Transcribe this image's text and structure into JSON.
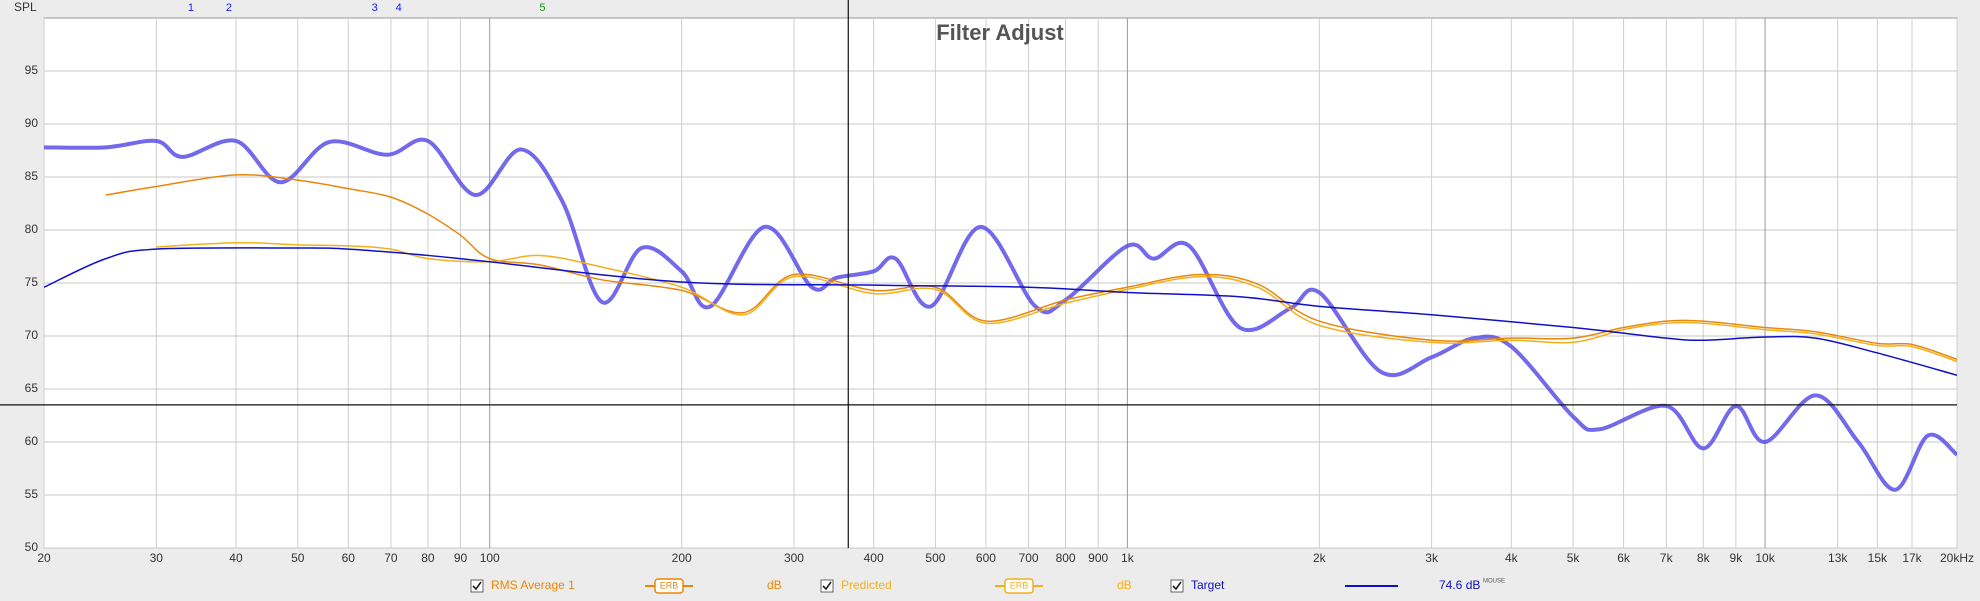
{
  "chart_data": {
    "type": "line",
    "title": "Filter Adjust",
    "ylabel": "SPL",
    "xscale": "log",
    "xlim": [
      20,
      20000
    ],
    "ylim": [
      50,
      100
    ],
    "grid": true,
    "xticks": [
      20,
      30,
      40,
      50,
      60,
      70,
      80,
      90,
      100,
      200,
      300,
      400,
      500,
      600,
      700,
      800,
      900,
      {
        "value": 1000,
        "label": "1k"
      },
      {
        "value": 2000,
        "label": "2k"
      },
      {
        "value": 3000,
        "label": "3k"
      },
      {
        "value": 4000,
        "label": "4k"
      },
      {
        "value": 5000,
        "label": "5k"
      },
      {
        "value": 6000,
        "label": "6k"
      },
      {
        "value": 7000,
        "label": "7k"
      },
      {
        "value": 8000,
        "label": "8k"
      },
      {
        "value": 9000,
        "label": "9k"
      },
      {
        "value": 10000,
        "label": "10k"
      },
      {
        "value": 13000,
        "label": "13k"
      },
      {
        "value": 15000,
        "label": "15k"
      },
      {
        "value": 17000,
        "label": "17k"
      },
      {
        "value": 20000,
        "label": "20kHz"
      }
    ],
    "yticks": [
      50,
      55,
      60,
      65,
      70,
      75,
      80,
      85,
      90,
      95
    ],
    "cursor": {
      "x": 365,
      "y": 63.5
    },
    "filter_markers": [
      {
        "label": "1",
        "x": 34,
        "color": "#1a1aff"
      },
      {
        "label": "2",
        "x": 39,
        "color": "#1a1aff"
      },
      {
        "label": "3",
        "x": 66,
        "color": "#1a1aff"
      },
      {
        "label": "4",
        "x": 72,
        "color": "#1a1aff"
      },
      {
        "label": "5",
        "x": 121,
        "color": "#119911"
      }
    ],
    "series": [
      {
        "color": "#5b4fe6",
        "line_width": 4,
        "x": [
          20,
          25,
          30,
          33,
          40,
          47,
          56,
          69,
          80,
          95,
          112,
          130,
          150,
          173,
          200,
          222,
          270,
          320,
          350,
          400,
          433,
          492,
          589,
          717,
          800,
          1000,
          1100,
          1250,
          1500,
          1800,
          2000,
          2500,
          3000,
          3500,
          4000,
          5000,
          5500,
          7000,
          8000,
          9000,
          10000,
          12000,
          14000,
          16000,
          18000,
          20000
        ],
        "values": [
          87.8,
          87.8,
          88.4,
          86.9,
          88.4,
          84.5,
          88.3,
          87.1,
          88.4,
          83.3,
          87.6,
          82.7,
          73.2,
          78.3,
          76.1,
          72.8,
          80.3,
          74.6,
          75.5,
          76.1,
          77.3,
          72.8,
          80.3,
          72.8,
          73.4,
          78.5,
          77.3,
          78.5,
          70.8,
          72.6,
          74.1,
          66.6,
          68.0,
          69.8,
          69.0,
          62.4,
          61.2,
          63.4,
          59.4,
          63.4,
          60.0,
          64.4,
          60.0,
          55.5,
          60.6,
          58.8
        ]
      },
      {
        "name": "RMS Average 1",
        "color": "#e8870c",
        "line_width": 1.5,
        "smoothing": "ERB",
        "unit": "dB",
        "x": [
          25,
          30,
          40,
          50,
          60,
          70,
          80,
          90,
          100,
          120,
          150,
          200,
          250,
          300,
          400,
          500,
          600,
          800,
          1000,
          1300,
          1600,
          2000,
          3000,
          4000,
          5000,
          6000,
          7000,
          8000,
          10000,
          12000,
          15000,
          17000,
          20000
        ],
        "values": [
          83.3,
          84.1,
          85.2,
          84.7,
          83.9,
          83.1,
          81.5,
          79.5,
          77.3,
          76.7,
          75.3,
          74.3,
          72.2,
          75.8,
          74.3,
          74.6,
          71.4,
          73.4,
          74.6,
          75.8,
          74.9,
          71.4,
          69.6,
          69.8,
          69.8,
          70.8,
          71.4,
          71.4,
          70.8,
          70.4,
          69.3,
          69.2,
          67.8
        ]
      },
      {
        "name": "Predicted",
        "color": "#f2b01e",
        "line_width": 1.5,
        "smoothing": "ERB",
        "unit": "dB",
        "x": [
          30,
          40,
          50,
          60,
          70,
          80,
          100,
          120,
          150,
          200,
          250,
          300,
          400,
          500,
          600,
          800,
          1000,
          1300,
          1600,
          2000,
          3000,
          4000,
          5000,
          6000,
          7000,
          8000,
          10000,
          12000,
          15000,
          17000,
          20000
        ],
        "values": [
          78.4,
          78.8,
          78.6,
          78.5,
          78.2,
          77.3,
          77.0,
          77.6,
          76.5,
          74.6,
          72.0,
          75.6,
          74.0,
          74.4,
          71.2,
          73.1,
          74.4,
          75.6,
          74.6,
          71.0,
          69.4,
          69.6,
          69.4,
          70.6,
          71.2,
          71.2,
          70.6,
          70.2,
          69.1,
          69.0,
          67.6
        ]
      },
      {
        "name": "Target",
        "color": "#1010c8",
        "line_width": 1.5,
        "readout": "74.6 dB",
        "readout_note": "MOUSE",
        "x": [
          20,
          25,
          30,
          50,
          60,
          80,
          100,
          200,
          400,
          700,
          1000,
          1500,
          2000,
          3000,
          5000,
          7000,
          8000,
          10000,
          12000,
          15000,
          20000
        ],
        "values": [
          74.6,
          77.3,
          78.2,
          78.3,
          78.2,
          77.6,
          77.0,
          75.1,
          74.8,
          74.6,
          74.1,
          73.7,
          72.8,
          72.0,
          70.8,
          69.8,
          69.6,
          69.9,
          69.8,
          68.4,
          66.3
        ]
      }
    ]
  }
}
